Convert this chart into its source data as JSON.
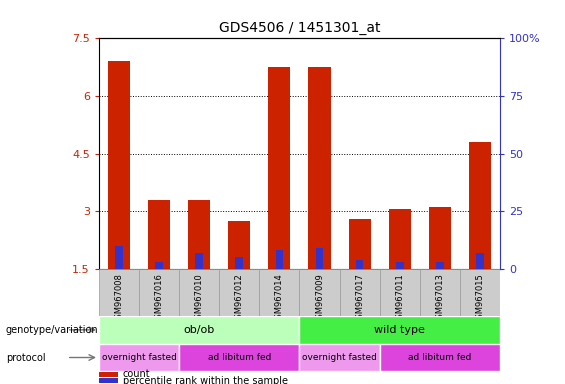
{
  "title": "GDS4506 / 1451301_at",
  "samples": [
    "GSM967008",
    "GSM967016",
    "GSM967010",
    "GSM967012",
    "GSM967014",
    "GSM967009",
    "GSM967017",
    "GSM967011",
    "GSM967013",
    "GSM967015"
  ],
  "count_values": [
    6.9,
    3.3,
    3.3,
    2.75,
    6.75,
    6.75,
    2.8,
    3.05,
    3.1,
    4.8
  ],
  "percentile_values": [
    10,
    3,
    7,
    5,
    8,
    9,
    4,
    3,
    3,
    7
  ],
  "bar_bottom": 1.5,
  "ylim": [
    1.5,
    7.5
  ],
  "y_ticks": [
    1.5,
    3.0,
    4.5,
    6.0,
    7.5
  ],
  "y_tick_labels": [
    "1.5",
    "3",
    "4.5",
    "6",
    "7.5"
  ],
  "right_ylim": [
    0,
    100
  ],
  "right_y_ticks": [
    0,
    25,
    50,
    75,
    100
  ],
  "right_y_tick_labels": [
    "0",
    "25",
    "50",
    "75",
    "100%"
  ],
  "count_color": "#cc2200",
  "percentile_color": "#3333cc",
  "bar_width": 0.55,
  "genotype_groups": [
    {
      "label": "ob/ob",
      "start": 0,
      "end": 5,
      "color": "#bbffbb"
    },
    {
      "label": "wild type",
      "start": 5,
      "end": 10,
      "color": "#44ee44"
    }
  ],
  "protocol_groups": [
    {
      "label": "overnight fasted",
      "start": 0,
      "end": 2,
      "color": "#ee99ee"
    },
    {
      "label": "ad libitum fed",
      "start": 2,
      "end": 5,
      "color": "#dd44dd"
    },
    {
      "label": "overnight fasted",
      "start": 5,
      "end": 7,
      "color": "#ee99ee"
    },
    {
      "label": "ad libitum fed",
      "start": 7,
      "end": 10,
      "color": "#dd44dd"
    }
  ],
  "legend_items": [
    {
      "label": "count",
      "color": "#cc2200"
    },
    {
      "label": "percentile rank within the sample",
      "color": "#3333cc"
    }
  ],
  "left_label": "genotype/variation",
  "protocol_label": "protocol",
  "grid_lines": [
    3.0,
    4.5,
    6.0
  ],
  "tick_color_left": "#cc2200",
  "tick_color_right": "#3333cc",
  "sample_box_color": "#cccccc",
  "sample_box_edge": "#999999"
}
